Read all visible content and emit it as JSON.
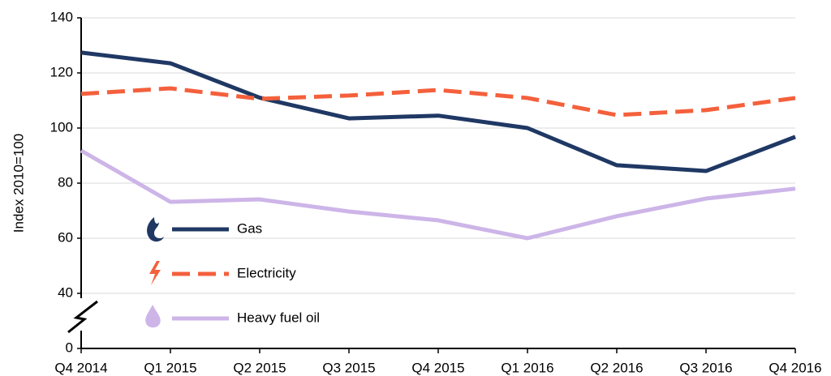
{
  "chart_data": {
    "type": "line",
    "y_label": "Index 2010=100",
    "categories": [
      "Q4 2014",
      "Q1 2015",
      "Q2 2015",
      "Q3 2015",
      "Q4 2015",
      "Q1 2016",
      "Q2 2016",
      "Q3 2016",
      "Q4 2016"
    ],
    "series": [
      {
        "name": "Gas",
        "color": "#1f3864",
        "dashed": false,
        "values": [
          127.4,
          123.5,
          111,
          103.5,
          104.5,
          100,
          86.5,
          84.4,
          96.8
        ]
      },
      {
        "name": "Electricity",
        "color": "#f4603c",
        "dashed": true,
        "values": [
          112.4,
          114.4,
          110.6,
          111.8,
          113.8,
          110.9,
          104.7,
          106.5,
          110.9
        ]
      },
      {
        "name": "Heavy fuel oil",
        "color": "#cdb5e8",
        "dashed": false,
        "values": [
          91.8,
          73.2,
          74.1,
          69.7,
          66.5,
          60,
          68,
          74.4,
          78
        ]
      }
    ],
    "ylim": [
      0,
      140
    ],
    "yticks": [
      0,
      40,
      60,
      80,
      100,
      120,
      140
    ],
    "axis_break": true,
    "grid": true
  }
}
